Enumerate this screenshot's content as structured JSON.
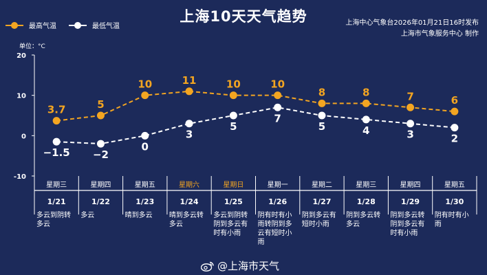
{
  "title": "上海10天天气趋势",
  "legend": {
    "high_label": "最高气温",
    "low_label": "最低气温"
  },
  "publish": {
    "line1": "上海中心气象台2026年01月21日16时发布",
    "line2": "上海市气象服务中心  制作"
  },
  "unit_label": "单位：°C",
  "watermark": "@上海市天气",
  "colors": {
    "background": "#1c2a5a",
    "high": "#f3a521",
    "low": "#ffffff",
    "weekend": "#f3a521",
    "grid": "#ffffff"
  },
  "chart_data": {
    "type": "line",
    "ylim": [
      -10,
      20
    ],
    "yticks": [
      -10,
      0,
      10,
      20
    ],
    "grid": false,
    "legend_position": "top-left",
    "days": [
      {
        "weekday": "星期三",
        "date": "1/21",
        "weather": [
          "多云到阴转",
          "多云"
        ],
        "high": 3.7,
        "low": -1.5,
        "weekend": false
      },
      {
        "weekday": "星期四",
        "date": "1/22",
        "weather": [
          "多云"
        ],
        "high": 5,
        "low": -2,
        "weekend": false
      },
      {
        "weekday": "星期五",
        "date": "1/23",
        "weather": [
          "晴到多云"
        ],
        "high": 10,
        "low": 0,
        "weekend": false
      },
      {
        "weekday": "星期六",
        "date": "1/24",
        "weather": [
          "晴到多云转",
          "多云"
        ],
        "high": 11,
        "low": 3,
        "weekend": true
      },
      {
        "weekday": "星期日",
        "date": "1/25",
        "weather": [
          "多云到阴转",
          "阴到多云有",
          "时有小雨"
        ],
        "high": 10,
        "low": 5,
        "weekend": true
      },
      {
        "weekday": "星期一",
        "date": "1/26",
        "weather": [
          "阴有时有小",
          "雨转阴到多",
          "云有短时小",
          "雨"
        ],
        "high": 10,
        "low": 7,
        "weekend": false
      },
      {
        "weekday": "星期二",
        "date": "1/27",
        "weather": [
          "阴到多云有",
          "短时小雨"
        ],
        "high": 8,
        "low": 5,
        "weekend": false
      },
      {
        "weekday": "星期三",
        "date": "1/28",
        "weather": [
          "阴到多云转",
          "多云"
        ],
        "high": 8,
        "low": 4,
        "weekend": false
      },
      {
        "weekday": "星期四",
        "date": "1/29",
        "weather": [
          "阴到多云转",
          "阴到多云有",
          "时有小雨"
        ],
        "high": 7,
        "low": 3,
        "weekend": false
      },
      {
        "weekday": "星期五",
        "date": "1/30",
        "weather": [
          "阴有时有小",
          "雨"
        ],
        "high": 6,
        "low": 2,
        "weekend": false
      }
    ],
    "series": [
      {
        "name": "最高气温",
        "key": "high"
      },
      {
        "name": "最低气温",
        "key": "low"
      }
    ]
  }
}
